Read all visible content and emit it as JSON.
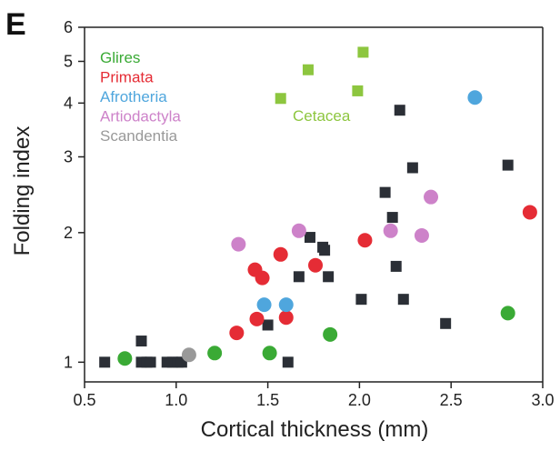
{
  "chart_data": {
    "type": "scatter",
    "panel_label": "E",
    "title": "",
    "xlabel": "Cortical thickness (mm)",
    "ylabel": "Folding index",
    "xlim": [
      0.5,
      3.0
    ],
    "ylim": [
      0.9,
      6.0
    ],
    "y_scale": "log",
    "grid": false,
    "legend_position": "top-left",
    "x_ticks": [
      0.5,
      1.0,
      1.5,
      2.0,
      2.5,
      3.0
    ],
    "x_tick_labels": [
      "0.5",
      "1.0",
      "1.5",
      "2.0",
      "2.5",
      "3.0"
    ],
    "y_ticks": [
      1,
      2,
      3,
      4,
      5,
      6
    ],
    "y_tick_labels": [
      "1",
      "2",
      "3",
      "4",
      "5",
      "6"
    ],
    "legend": [
      {
        "name": "Glires",
        "color": "#3aaa35"
      },
      {
        "name": "Primata",
        "color": "#e52c35"
      },
      {
        "name": "Afrotheria",
        "color": "#4fa6dd"
      },
      {
        "name": "Artiodactyla",
        "color": "#cd82c9"
      },
      {
        "name": "Scandentia",
        "color": "#999999"
      }
    ],
    "annotations": [
      {
        "text": "Cetacea",
        "color": "#8dc63f"
      }
    ],
    "series": [
      {
        "group": "Other (unlabeled)",
        "color": "#2b2f36",
        "marker": "square",
        "points": [
          [
            0.61,
            1.0
          ],
          [
            0.81,
            1.12
          ],
          [
            0.81,
            1.0
          ],
          [
            0.84,
            1.0
          ],
          [
            0.86,
            1.0
          ],
          [
            0.95,
            1.0
          ],
          [
            0.98,
            1.0
          ],
          [
            1.01,
            1.0
          ],
          [
            1.03,
            1.0
          ],
          [
            1.5,
            1.22
          ],
          [
            1.61,
            1.0
          ],
          [
            1.67,
            1.58
          ],
          [
            1.73,
            1.95
          ],
          [
            1.8,
            1.85
          ],
          [
            1.81,
            1.82
          ],
          [
            1.83,
            1.58
          ],
          [
            2.01,
            1.4
          ],
          [
            2.14,
            2.48
          ],
          [
            2.18,
            2.17
          ],
          [
            2.2,
            1.67
          ],
          [
            2.22,
            3.85
          ],
          [
            2.24,
            1.4
          ],
          [
            2.29,
            2.83
          ],
          [
            2.47,
            1.23
          ],
          [
            2.81,
            2.87
          ]
        ]
      },
      {
        "group": "Glires",
        "color": "#3aaa35",
        "marker": "circle",
        "points": [
          [
            0.72,
            1.02
          ],
          [
            1.21,
            1.05
          ],
          [
            1.51,
            1.05
          ],
          [
            1.84,
            1.16
          ],
          [
            2.81,
            1.3
          ]
        ]
      },
      {
        "group": "Primata",
        "color": "#e52c35",
        "marker": "circle",
        "points": [
          [
            1.33,
            1.17
          ],
          [
            1.43,
            1.64
          ],
          [
            1.47,
            1.57
          ],
          [
            1.44,
            1.26
          ],
          [
            1.57,
            1.78
          ],
          [
            1.6,
            1.27
          ],
          [
            1.76,
            1.68
          ],
          [
            2.03,
            1.92
          ],
          [
            2.93,
            2.23
          ]
        ]
      },
      {
        "group": "Afrotheria",
        "color": "#4fa6dd",
        "marker": "circle",
        "points": [
          [
            1.48,
            1.36
          ],
          [
            1.6,
            1.36
          ],
          [
            2.63,
            4.12
          ]
        ]
      },
      {
        "group": "Artiodactyla",
        "color": "#cd82c9",
        "marker": "circle",
        "points": [
          [
            1.34,
            1.88
          ],
          [
            1.67,
            2.02
          ],
          [
            2.17,
            2.02
          ],
          [
            2.34,
            1.97
          ],
          [
            2.39,
            2.42
          ]
        ]
      },
      {
        "group": "Scandentia",
        "color": "#999999",
        "marker": "circle",
        "points": [
          [
            1.07,
            1.04
          ]
        ]
      },
      {
        "group": "Cetacea",
        "color": "#8dc63f",
        "marker": "square",
        "points": [
          [
            1.57,
            4.1
          ],
          [
            1.72,
            4.78
          ],
          [
            1.99,
            4.27
          ],
          [
            2.02,
            5.25
          ]
        ]
      }
    ]
  }
}
